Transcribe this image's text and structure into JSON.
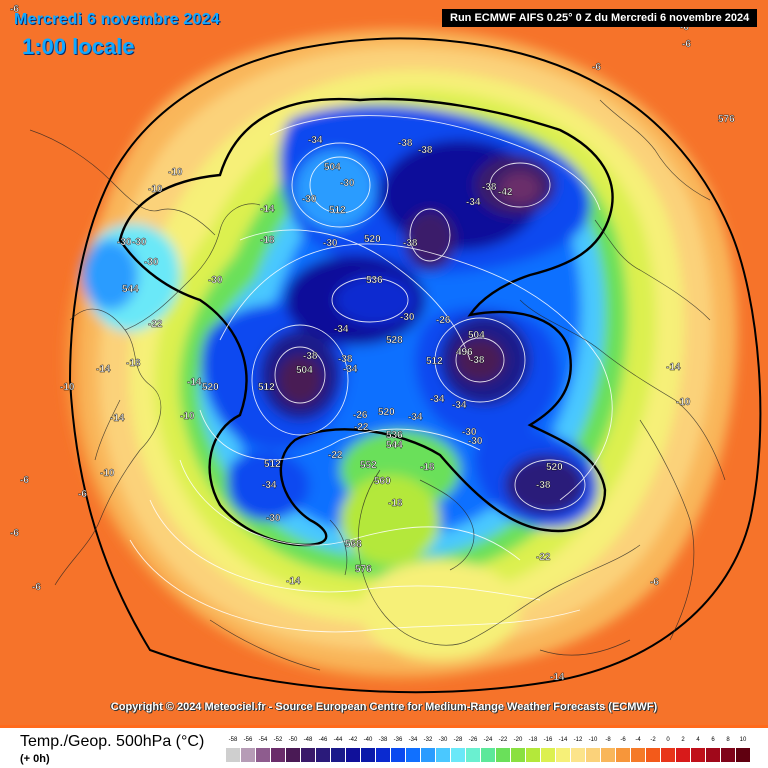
{
  "header": {
    "date_title": "Mercredi 6 novembre 2024",
    "time_title": "1:00 locale",
    "run_label": "Run ECMWF AIFS 0.25° 0 Z du Mercredi 6 novembre 2024"
  },
  "copyright": "Copyright © 2024 Meteociel.fr - Source European Centre for Medium-Range Weather Forecasts (ECMWF)",
  "legend": {
    "title": "Temp./Geop. 500hPa (°C)",
    "subtitle": "(+ 0h)",
    "ticks": [
      "-58",
      "-56",
      "-54",
      "-52",
      "-50",
      "-48",
      "-46",
      "-44",
      "-42",
      "-40",
      "-38",
      "-36",
      "-34",
      "-32",
      "-30",
      "-28",
      "-26",
      "-24",
      "-22",
      "-20",
      "-18",
      "-16",
      "-14",
      "-12",
      "-10",
      "-8",
      "-6",
      "-4",
      "-2",
      "0",
      "2",
      "4",
      "6",
      "8",
      "10"
    ],
    "colors": [
      "#cfcfcf",
      "#b69cb6",
      "#8e5c8e",
      "#6a2d6a",
      "#4a1a55",
      "#3a1a6a",
      "#2a1a7a",
      "#1a1a8a",
      "#10109a",
      "#0a1aaa",
      "#0a2ad0",
      "#0a4af0",
      "#1070ff",
      "#2a9cff",
      "#4ac8ff",
      "#6ae8f8",
      "#6af0d0",
      "#5ce89a",
      "#6ae05a",
      "#8ae040",
      "#b4e83a",
      "#dcf050",
      "#f6f078",
      "#fce48a",
      "#fbd27a",
      "#f9b65a",
      "#f7963a",
      "#f57a28",
      "#f35a1a",
      "#e8351a",
      "#d81a1a",
      "#c0101a",
      "#a0081a",
      "#80041a",
      "#600010"
    ]
  },
  "map_labels": [
    {
      "text": "-6"
    },
    {
      "text": "-6"
    },
    {
      "text": "576"
    },
    {
      "text": "-6"
    },
    {
      "text": "-6"
    },
    {
      "text": "-10"
    },
    {
      "text": "-10"
    },
    {
      "text": "-14"
    },
    {
      "text": "-18"
    },
    {
      "text": "-34"
    },
    {
      "text": "504"
    },
    {
      "text": "-30"
    },
    {
      "text": "-30"
    },
    {
      "text": "512"
    },
    {
      "text": "-30"
    },
    {
      "text": "-38"
    },
    {
      "text": "-38"
    },
    {
      "text": "-38"
    },
    {
      "text": "-42"
    },
    {
      "text": "-34"
    },
    {
      "text": "520"
    },
    {
      "text": "-38"
    },
    {
      "text": "-30"
    },
    {
      "text": "-30"
    },
    {
      "text": "-30"
    },
    {
      "text": "544"
    },
    {
      "text": "-30"
    },
    {
      "text": "536"
    },
    {
      "text": "-22"
    },
    {
      "text": "-34"
    },
    {
      "text": "-30"
    },
    {
      "text": "-26"
    },
    {
      "text": "528"
    },
    {
      "text": "504"
    },
    {
      "text": "496"
    },
    {
      "text": "-38"
    },
    {
      "text": "512"
    },
    {
      "text": "-38"
    },
    {
      "text": "-38"
    },
    {
      "text": "504"
    },
    {
      "text": "512"
    },
    {
      "text": "520"
    },
    {
      "text": "-34"
    },
    {
      "text": "-34"
    },
    {
      "text": "-34"
    },
    {
      "text": "-26"
    },
    {
      "text": "520"
    },
    {
      "text": "-34"
    },
    {
      "text": "-30"
    },
    {
      "text": "-30"
    },
    {
      "text": "-22"
    },
    {
      "text": "536"
    },
    {
      "text": "544"
    },
    {
      "text": "-22"
    },
    {
      "text": "-18"
    },
    {
      "text": "552"
    },
    {
      "text": "560"
    },
    {
      "text": "-18"
    },
    {
      "text": "520"
    },
    {
      "text": "-38"
    },
    {
      "text": "512"
    },
    {
      "text": "-34"
    },
    {
      "text": "-30"
    },
    {
      "text": "568"
    },
    {
      "text": "576"
    },
    {
      "text": "-22"
    },
    {
      "text": "-14"
    },
    {
      "text": "-14"
    },
    {
      "text": "-18"
    },
    {
      "text": "-14"
    },
    {
      "text": "-14"
    },
    {
      "text": "-10"
    },
    {
      "text": "-10"
    },
    {
      "text": "-14"
    },
    {
      "text": "-6"
    },
    {
      "text": "-6"
    },
    {
      "text": "-10"
    },
    {
      "text": "-14"
    },
    {
      "text": "-10"
    },
    {
      "text": "-6"
    },
    {
      "text": "-6"
    },
    {
      "text": "-6"
    }
  ]
}
